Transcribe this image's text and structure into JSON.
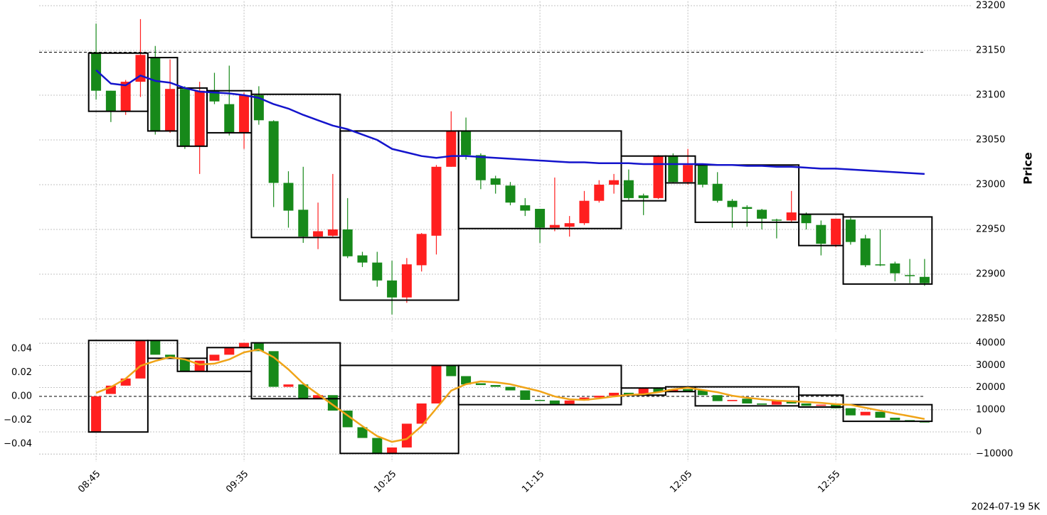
{
  "footer": "2024-07-19 5K",
  "chart_data": [
    {
      "type": "candlestick",
      "ylabel": "Price",
      "up_color": "#ff1f1f",
      "down_color": "#17891a",
      "xlim": [
        -3.85,
        59.13
      ],
      "ylim": [
        22840,
        23205
      ],
      "yticks": [
        22850,
        22900,
        22950,
        23000,
        23050,
        23100,
        23150,
        23200
      ],
      "grid": true,
      "open": [
        23148,
        23105,
        23082,
        23115,
        23142,
        23060,
        23107,
        23043,
        23105,
        23090,
        23058,
        23100,
        23071,
        23002,
        22972,
        22942,
        22943,
        22950,
        22921,
        22913,
        22893,
        22874,
        22910,
        22943,
        23020,
        23060,
        23033,
        23007,
        22999,
        22977,
        22973,
        22952,
        22953,
        22957,
        22982,
        23000,
        23005,
        22988,
        22985,
        23032,
        23003,
        23022,
        23001,
        22982,
        22975,
        22972,
        22961,
        22960,
        22967,
        22955,
        22933,
        22961,
        22940,
        22911,
        22912,
        22899,
        22897
      ],
      "high": [
        23180,
        23105,
        23117,
        23185,
        23155,
        23140,
        23110,
        23115,
        23125,
        23133,
        23103,
        23110,
        23072,
        23015,
        23020,
        22980,
        23012,
        22985,
        22925,
        22925,
        22915,
        22918,
        22946,
        23022,
        23082,
        23075,
        23035,
        23010,
        23003,
        22985,
        22973,
        23008,
        22965,
        22993,
        23005,
        23012,
        23017,
        22990,
        23033,
        23035,
        23040,
        23022,
        23014,
        22984,
        22977,
        22973,
        22962,
        22993,
        22969,
        22960,
        22962,
        22963,
        22944,
        22950,
        22914,
        22917,
        22917
      ],
      "low": [
        23095,
        23070,
        23078,
        23098,
        23056,
        23058,
        23040,
        23012,
        23090,
        23055,
        23040,
        23067,
        22975,
        22952,
        22935,
        22928,
        22942,
        22918,
        22908,
        22886,
        22855,
        22868,
        22903,
        22922,
        23020,
        23028,
        22995,
        22990,
        22977,
        22965,
        22935,
        22948,
        22942,
        22955,
        22980,
        22990,
        22983,
        22966,
        22984,
        23002,
        23000,
        22997,
        22980,
        22952,
        22953,
        22950,
        22940,
        22958,
        22950,
        22921,
        22930,
        22933,
        22908,
        22909,
        22892,
        22890,
        22887
      ],
      "close": [
        23105,
        23082,
        23115,
        23145,
        23060,
        23107,
        23043,
        23105,
        23093,
        23058,
        23100,
        23072,
        23002,
        22971,
        22942,
        22948,
        22950,
        22920,
        22913,
        22893,
        22874,
        22911,
        22945,
        23020,
        23060,
        23033,
        23005,
        23000,
        22980,
        22971,
        22952,
        22955,
        22957,
        22982,
        23000,
        23005,
        22985,
        22985,
        23032,
        23003,
        23022,
        23000,
        22982,
        22975,
        22973,
        22962,
        22960,
        22969,
        22957,
        22934,
        22962,
        22936,
        22910,
        22910,
        22901,
        22898,
        22890
      ],
      "line": {
        "color": "#1414cc",
        "values": [
          23128,
          23113,
          23111,
          23122,
          23116,
          23114,
          23108,
          23104,
          23103,
          23102,
          23100,
          23097,
          23090,
          23085,
          23078,
          23072,
          23066,
          23062,
          23056,
          23050,
          23040,
          23036,
          23032,
          23030,
          23032,
          23032,
          23031,
          23030,
          23029,
          23028,
          23027,
          23026,
          23025,
          23025,
          23024,
          23024,
          23024,
          23023,
          23023,
          23023,
          23023,
          23023,
          23022,
          23022,
          23021,
          23021,
          23020,
          23020,
          23019,
          23018,
          23018,
          23017,
          23016,
          23015,
          23014,
          23013,
          23012
        ]
      },
      "refline": {
        "value": 23148,
        "end": 56
      },
      "boxes": [
        {
          "start": 0,
          "end": 3,
          "top": 23147,
          "bottom": 23082
        },
        {
          "start": 4,
          "end": 5,
          "top": 23142,
          "bottom": 23060
        },
        {
          "start": 6,
          "end": 7,
          "top": 23108,
          "bottom": 23043
        },
        {
          "start": 8,
          "end": 10,
          "top": 23105,
          "bottom": 23058
        },
        {
          "start": 11,
          "end": 16,
          "top": 23101,
          "bottom": 22941
        },
        {
          "start": 17,
          "end": 24,
          "top": 23060,
          "bottom": 22871
        },
        {
          "start": 25,
          "end": 35,
          "top": 23060,
          "bottom": 22951
        },
        {
          "start": 36,
          "end": 38,
          "top": 23032,
          "bottom": 22982
        },
        {
          "start": 39,
          "end": 40,
          "top": 23032,
          "bottom": 23002
        },
        {
          "start": 41,
          "end": 47,
          "top": 23022,
          "bottom": 22958
        },
        {
          "start": 48,
          "end": 50,
          "top": 22967,
          "bottom": 22932
        },
        {
          "start": 51,
          "end": 56,
          "top": 22964,
          "bottom": 22889
        }
      ]
    },
    {
      "type": "candlestick",
      "up_color": "#ff1f1f",
      "down_color": "#17891a",
      "categories": [
        "08:45",
        null,
        null,
        null,
        null,
        null,
        null,
        null,
        null,
        null,
        "09:35",
        null,
        null,
        null,
        null,
        null,
        null,
        null,
        null,
        null,
        "10:25",
        null,
        null,
        null,
        null,
        null,
        null,
        null,
        null,
        null,
        "11:15",
        null,
        null,
        null,
        null,
        null,
        null,
        null,
        null,
        null,
        "12:05",
        null,
        null,
        null,
        null,
        null,
        null,
        null,
        null,
        null,
        "12:55",
        null,
        null,
        null,
        null,
        null,
        null
      ],
      "xlim": [
        -3.85,
        59.13
      ],
      "ylim": [
        -0.052,
        0.048
      ],
      "y2lim": [
        -11860,
        41790
      ],
      "yticks": [
        {
          "value": -0.04,
          "label": "−0.04"
        },
        {
          "value": -0.02,
          "label": "−0.02"
        },
        {
          "value": 0,
          "label": "0.00"
        },
        0.02,
        0.04
      ],
      "y2ticks": [
        {
          "value": -10000,
          "label": "−10000"
        },
        0,
        10000,
        20000,
        30000,
        40000
      ],
      "grid": true,
      "open": [
        -0.03,
        0.002,
        0.009,
        0.015,
        0.047,
        0.035,
        0.032,
        0.021,
        0.03,
        0.035,
        0.041,
        0.045,
        0.038,
        0.008,
        0.01,
        -0.002,
        0.001,
        -0.012,
        -0.026,
        -0.035,
        -0.048,
        -0.043,
        -0.023,
        -0.006,
        0.026,
        0.017,
        0.011,
        0.0095,
        0.008,
        0.005,
        -0.003,
        -0.0035,
        -0.0065,
        -0.0035,
        -0.001,
        0.0005,
        0.003,
        0.001,
        0.007,
        0.0035,
        0.006,
        0.005,
        0.001,
        -0.004,
        -0.002,
        -0.006,
        -0.007,
        -0.0035,
        -0.006,
        -0.008,
        -0.007,
        -0.01,
        -0.016,
        -0.013,
        -0.018,
        -0.02,
        -0.021
      ],
      "close": [
        0.0,
        0.009,
        0.015,
        0.047,
        0.035,
        0.033,
        0.021,
        0.03,
        0.035,
        0.041,
        0.045,
        0.038,
        0.008,
        0.01,
        -0.002,
        0.001,
        -0.012,
        -0.026,
        -0.035,
        -0.048,
        -0.043,
        -0.023,
        -0.006,
        0.026,
        0.017,
        0.01,
        0.0095,
        0.008,
        0.005,
        -0.003,
        -0.0035,
        -0.0065,
        -0.0035,
        -0.001,
        0.0005,
        0.003,
        0.001,
        0.007,
        0.0035,
        0.006,
        0.004,
        0.001,
        -0.004,
        -0.003,
        -0.006,
        -0.007,
        -0.0035,
        -0.006,
        -0.008,
        -0.007,
        -0.01,
        -0.016,
        -0.013,
        -0.018,
        -0.02,
        -0.021,
        -0.022
      ],
      "line": {
        "color": "#f0a418",
        "axis": "y2",
        "values": [
          17600,
          20200,
          24000,
          29800,
          32000,
          33700,
          32700,
          30400,
          30800,
          32700,
          35900,
          37200,
          33700,
          28200,
          21800,
          17000,
          12200,
          7400,
          2600,
          -1900,
          -4500,
          -3200,
          2600,
          10600,
          18600,
          21500,
          22800,
          22400,
          21500,
          19900,
          18300,
          16000,
          14700,
          14400,
          15100,
          16000,
          16700,
          17000,
          17900,
          19200,
          19900,
          18900,
          17900,
          16300,
          15400,
          14700,
          14100,
          13800,
          13500,
          13100,
          12500,
          12200,
          10900,
          9600,
          8300,
          7100,
          5800
        ]
      },
      "refline": {
        "value": 0,
        "end": 56
      },
      "boxes": [
        {
          "start": 0,
          "end": 3,
          "top": 0.047,
          "bottom": -0.03
        },
        {
          "start": 4,
          "end": 5,
          "top": 0.047,
          "bottom": 0.032
        },
        {
          "start": 6,
          "end": 7,
          "top": 0.032,
          "bottom": 0.021
        },
        {
          "start": 8,
          "end": 10,
          "top": 0.041,
          "bottom": 0.021
        },
        {
          "start": 11,
          "end": 16,
          "top": 0.045,
          "bottom": -0.002
        },
        {
          "start": 17,
          "end": 24,
          "top": 0.026,
          "bottom": -0.048
        },
        {
          "start": 25,
          "end": 35,
          "top": 0.026,
          "bottom": -0.007
        },
        {
          "start": 36,
          "end": 38,
          "top": 0.007,
          "bottom": 0.001
        },
        {
          "start": 39,
          "end": 40,
          "top": 0.008,
          "bottom": 0.004
        },
        {
          "start": 41,
          "end": 47,
          "top": 0.008,
          "bottom": -0.008
        },
        {
          "start": 48,
          "end": 50,
          "top": 0.001,
          "bottom": -0.009
        },
        {
          "start": 51,
          "end": 56,
          "top": -0.007,
          "bottom": -0.021
        }
      ]
    }
  ]
}
